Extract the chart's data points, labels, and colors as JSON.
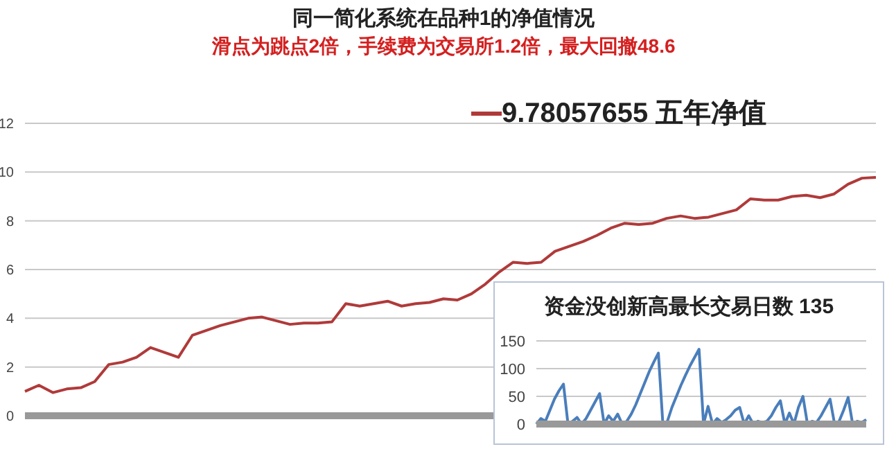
{
  "chart_data": [
    {
      "type": "line",
      "title": "同一简化系统在品种1的净值情况",
      "subtitle": "滑点为跳点2倍，手续费为交易所1.2倍，最大回撤48.6",
      "categories": [
        null,
        null,
        null,
        null,
        null,
        null,
        null,
        null,
        null,
        null,
        null,
        null,
        null,
        null,
        null,
        null,
        null,
        null,
        null,
        null,
        null,
        null,
        null,
        null,
        null,
        null,
        null,
        null,
        null,
        null,
        null,
        null,
        null,
        null,
        null,
        null,
        null,
        null,
        null,
        null,
        null,
        null,
        null,
        null,
        null,
        null,
        null,
        null,
        null,
        null,
        null,
        null,
        null,
        null,
        null,
        null,
        null,
        null,
        null,
        null,
        null,
        null
      ],
      "series": [
        {
          "name": "9.78057655 五年净值",
          "color": "#b03a3a",
          "values": [
            1.0,
            1.25,
            0.95,
            1.1,
            1.15,
            1.4,
            2.1,
            2.2,
            2.4,
            2.8,
            2.6,
            2.4,
            3.3,
            3.5,
            3.7,
            3.85,
            4.0,
            4.05,
            3.9,
            3.75,
            3.8,
            3.8,
            3.85,
            4.6,
            4.5,
            4.6,
            4.7,
            4.5,
            4.6,
            4.65,
            4.8,
            4.75,
            5.0,
            5.4,
            5.9,
            6.3,
            6.25,
            6.3,
            6.75,
            6.95,
            7.15,
            7.4,
            7.7,
            7.9,
            7.85,
            7.9,
            8.1,
            8.2,
            8.1,
            8.15,
            8.3,
            8.45,
            8.9,
            8.85,
            8.85,
            9.0,
            9.05,
            8.95,
            9.1,
            9.5,
            9.75,
            9.78
          ]
        }
      ],
      "ylim": [
        0,
        12
      ],
      "yticks": [
        0,
        2,
        4,
        6,
        8,
        10,
        12
      ],
      "grid": "y",
      "legend": "top",
      "marker": "none",
      "line_style": "solid",
      "tick_labels": "y"
    },
    {
      "type": "line",
      "title": "资金没创新高最长交易日数 135",
      "categories": [
        null,
        null,
        null,
        null,
        null,
        null,
        null,
        null,
        null,
        null,
        null,
        null,
        null,
        null,
        null,
        null,
        null,
        null,
        null,
        null,
        null,
        null,
        null,
        null,
        null,
        null,
        null,
        null,
        null,
        null,
        null,
        null,
        null,
        null,
        null,
        null,
        null,
        null,
        null,
        null,
        null,
        null,
        null,
        null,
        null,
        null,
        null,
        null,
        null,
        null,
        null,
        null,
        null,
        null,
        null,
        null,
        null,
        null,
        null,
        null,
        null,
        null,
        null,
        null,
        null,
        null,
        null,
        null,
        null,
        null,
        null,
        null,
        null,
        null
      ],
      "series": [
        {
          "color": "#4a7ebb",
          "values": [
            0,
            10,
            5,
            25,
            45,
            60,
            72,
            0,
            5,
            12,
            0,
            10,
            25,
            40,
            55,
            0,
            15,
            5,
            18,
            0,
            5,
            18,
            35,
            55,
            75,
            95,
            112,
            128,
            0,
            5,
            30,
            50,
            70,
            88,
            105,
            120,
            135,
            0,
            32,
            0,
            10,
            3,
            8,
            15,
            25,
            30,
            0,
            15,
            0,
            5,
            3,
            5,
            15,
            30,
            42,
            0,
            20,
            0,
            30,
            50,
            0,
            5,
            3,
            15,
            30,
            45,
            0,
            5,
            25,
            48,
            0,
            5,
            3,
            8
          ]
        }
      ],
      "ylim": [
        0,
        150
      ],
      "yticks": [
        0,
        50,
        100,
        150
      ],
      "grid": "y",
      "legend": false,
      "marker": "none",
      "line_style": "solid",
      "tick_labels": "y"
    }
  ]
}
